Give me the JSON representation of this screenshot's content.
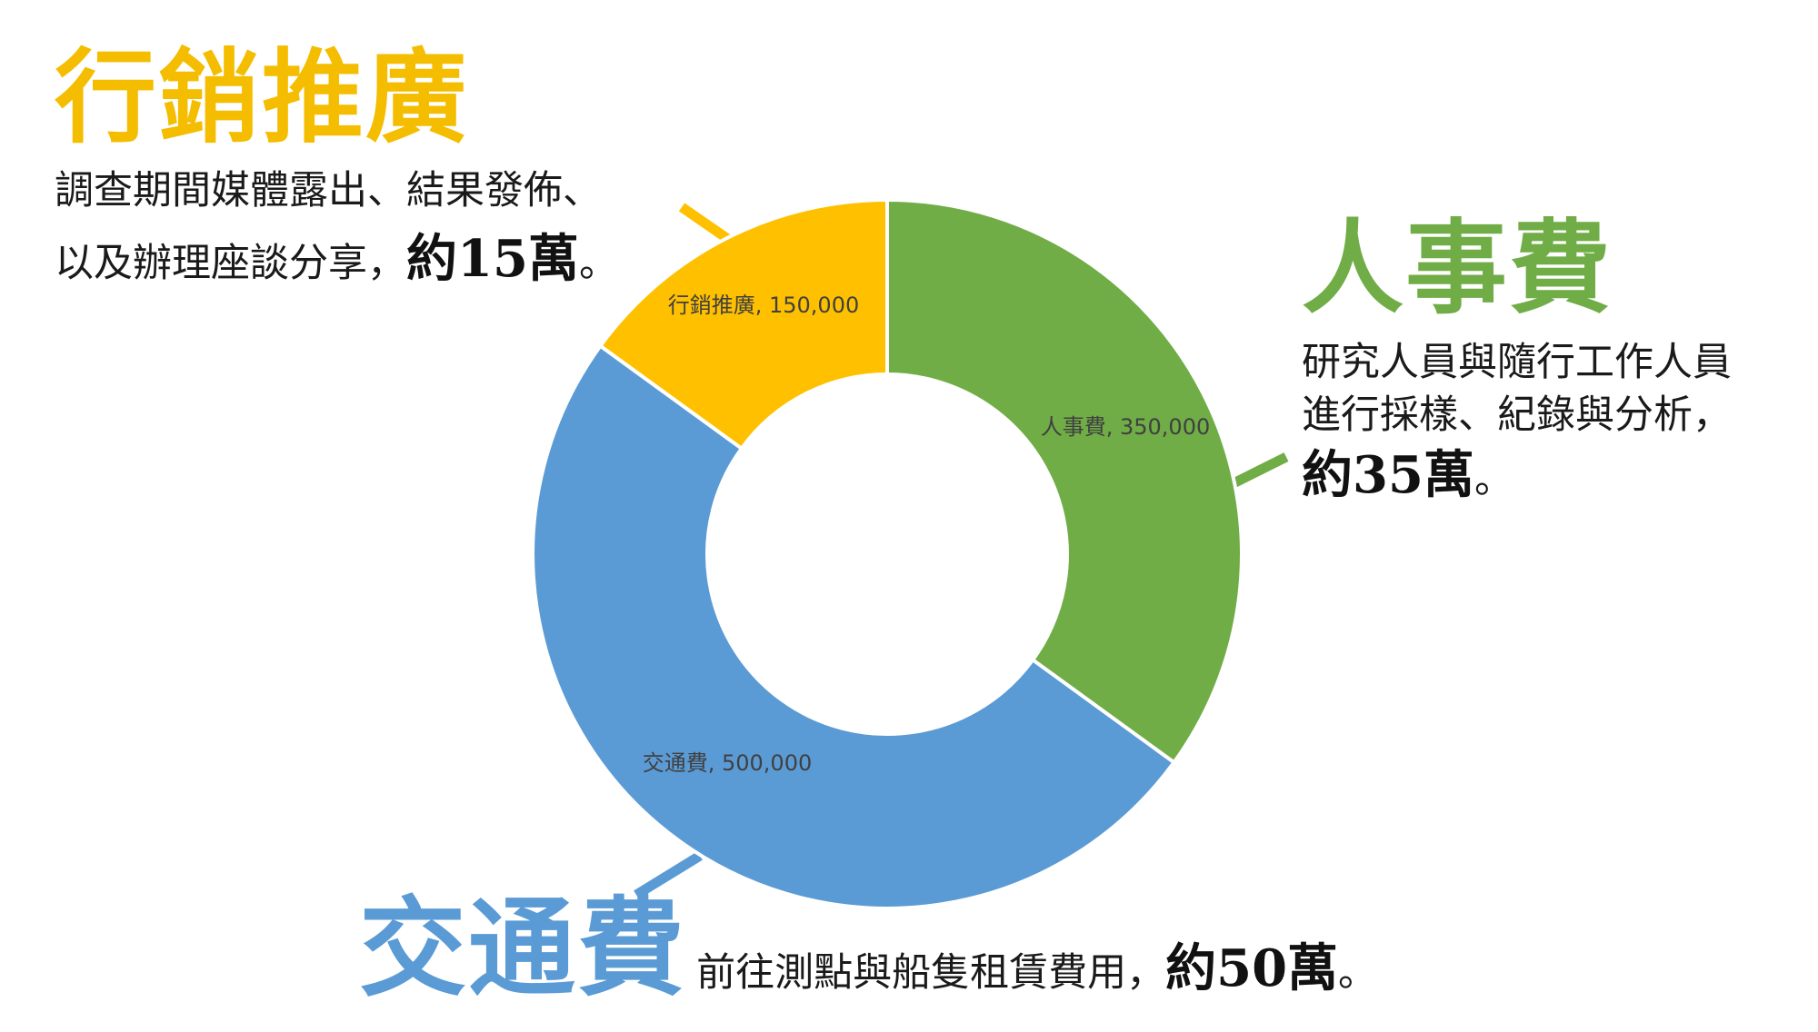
{
  "chart_data": {
    "type": "pie",
    "donut": true,
    "categories": [
      "人事費",
      "交通費",
      "行銷推廣"
    ],
    "values": [
      350000,
      500000,
      150000
    ],
    "data_labels": [
      "人事費, 350,000",
      "交通費, 500,000",
      "行銷推廣, 150,000"
    ],
    "colors": [
      "#70ad47",
      "#5b9bd5",
      "#ffc000"
    ],
    "start_angle": "12 o'clock, clockwise",
    "legend": "none"
  },
  "callouts": {
    "marketing": {
      "title": "行銷推廣",
      "desc_line1": "調查期間媒體露出、結果發佈、",
      "desc_line2": "以及辦理座談分享，",
      "amount": "約15萬",
      "period": "。",
      "color": "#f4bd00"
    },
    "personnel": {
      "title": "人事費",
      "desc_line1": "研究人員與隨行工作人員",
      "desc_line2": "進行採樣、紀錄與分析，",
      "amount": "約35萬",
      "period": "。",
      "color": "#70ad47"
    },
    "transport": {
      "title": "交通費",
      "desc": "前往測點與船隻租賃費用，",
      "amount": "約50萬",
      "period": "。",
      "color": "#5b9bd5"
    }
  }
}
